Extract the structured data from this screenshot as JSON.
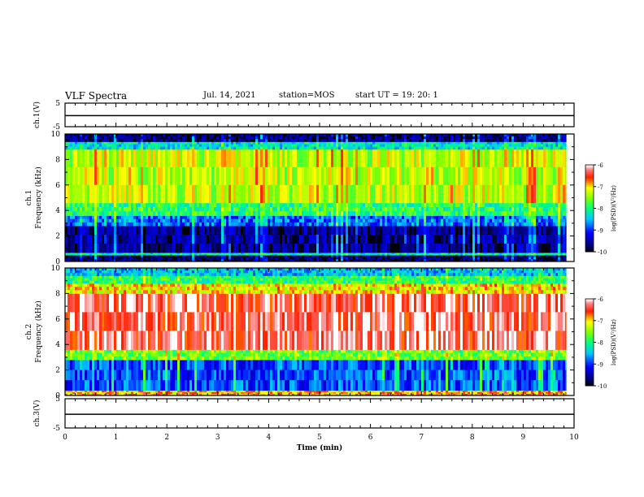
{
  "header": {
    "title": "VLF Spectra",
    "date": "Jul. 14, 2021",
    "station": "station=MOS",
    "start": "start UT = 19: 20: 1"
  },
  "chart_data": [
    {
      "type": "line",
      "name": "ch1_waveform",
      "ylabel": "ch.1(V)",
      "ylim": [
        -5,
        5
      ],
      "yticks": [
        "5",
        "-5"
      ],
      "x": [
        0,
        10
      ],
      "values": [
        -0.3,
        -0.3
      ]
    },
    {
      "type": "heatmap",
      "name": "ch1_spectrogram",
      "ylabel": "ch.1\nFrequency (kHz)",
      "ylim": [
        0,
        10
      ],
      "yticks": [
        "0",
        "2",
        "4",
        "6",
        "8",
        "10"
      ],
      "xlim": [
        0,
        9.85
      ],
      "bands": [
        {
          "f0": 0,
          "f1": 0.5,
          "level": -9.8
        },
        {
          "f0": 0.5,
          "f1": 0.7,
          "level": -8.2
        },
        {
          "f0": 0.7,
          "f1": 2.8,
          "level": -9.6
        },
        {
          "f0": 2.8,
          "f1": 3.6,
          "level": -8.8
        },
        {
          "f0": 3.6,
          "f1": 4.6,
          "level": -7.9
        },
        {
          "f0": 4.6,
          "f1": 8.8,
          "level": -7.3
        },
        {
          "f0": 8.8,
          "f1": 9.4,
          "level": -8.3
        },
        {
          "f0": 9.4,
          "f1": 10,
          "level": -9.7
        }
      ],
      "colorbar": {
        "label": "log(PSD)(V²/Hz)",
        "ticks": [
          "-6",
          "-7",
          "-8",
          "-9",
          "-10"
        ],
        "range": [
          -10,
          -6
        ]
      }
    },
    {
      "type": "heatmap",
      "name": "ch2_spectrogram",
      "ylabel": "ch.2\nFrequency (kHz)",
      "ylim": [
        0,
        10
      ],
      "yticks": [
        "0",
        "2",
        "4",
        "6",
        "8",
        "10"
      ],
      "xlim": [
        0,
        9.85
      ],
      "bands": [
        {
          "f0": 0,
          "f1": 0.4,
          "level": -6.9
        },
        {
          "f0": 0.4,
          "f1": 2.8,
          "level": -8.9
        },
        {
          "f0": 2.8,
          "f1": 3.6,
          "level": -7.6
        },
        {
          "f0": 3.6,
          "f1": 8.0,
          "level": -6.3
        },
        {
          "f0": 8.0,
          "f1": 8.8,
          "level": -7.1
        },
        {
          "f0": 8.8,
          "f1": 9.4,
          "level": -7.9
        },
        {
          "f0": 9.4,
          "f1": 10,
          "level": -8.5
        }
      ],
      "colorbar": {
        "label": "log(PSD)(V²/Hz)",
        "ticks": [
          "-6",
          "-7",
          "-8",
          "-9",
          "-10"
        ],
        "range": [
          -10,
          -6
        ]
      }
    },
    {
      "type": "line",
      "name": "ch3_waveform",
      "ylabel": "ch.3(V)",
      "ylim": [
        -5,
        5
      ],
      "yticks": [
        "5",
        "-5"
      ],
      "x": [
        0,
        10
      ],
      "values": [
        -0.3,
        -0.3
      ]
    }
  ],
  "x_axis": {
    "label": "Time (min)",
    "xlim": [
      0,
      10
    ],
    "ticks": [
      "0",
      "1",
      "2",
      "3",
      "4",
      "5",
      "6",
      "7",
      "8",
      "9",
      "10"
    ]
  },
  "colors": {
    "black": "#000000",
    "white": "#ffffff"
  }
}
